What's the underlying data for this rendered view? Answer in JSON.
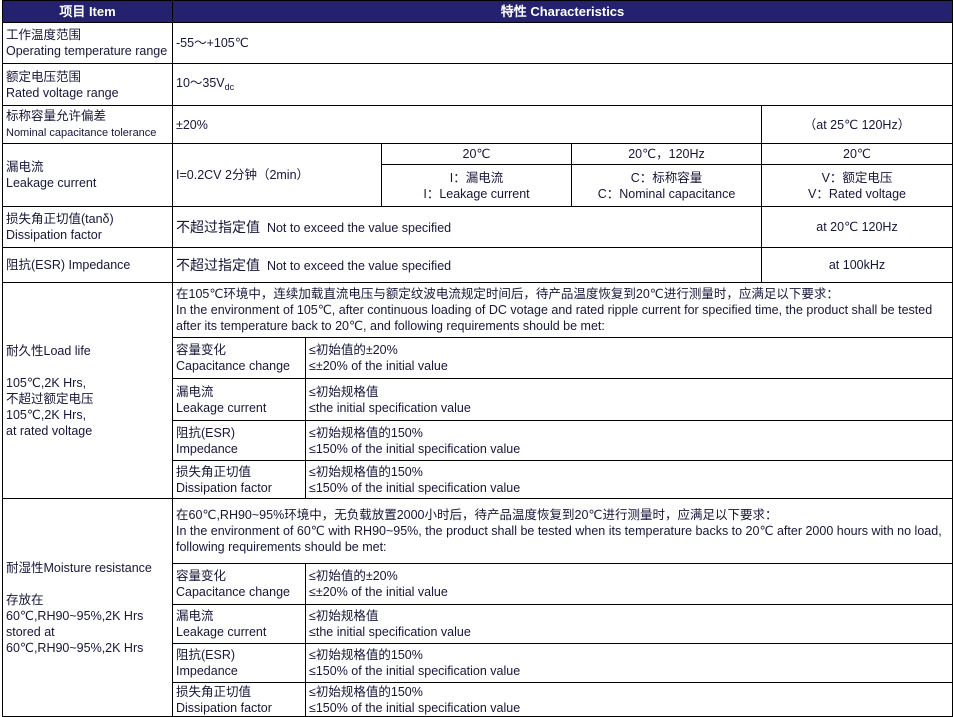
{
  "header": {
    "item": "项目 Item",
    "characteristics": "特性 Characteristics"
  },
  "rows": {
    "temp": {
      "label_zh": "工作温度范围",
      "label_en": "Operating temperature range",
      "value": "-55～+105℃"
    },
    "voltage": {
      "label_zh": "额定电压范围",
      "label_en": "Rated voltage range",
      "value": "10～35V",
      "value_sub": "dc"
    },
    "tolerance": {
      "label_zh": "标称容量允许偏差",
      "label_en": "Nominal capacitance tolerance",
      "value": "±20%",
      "condition": "（at  25℃ 120Hz）"
    },
    "leakage": {
      "label": "漏电流\nLeakage current",
      "value": "I=0.2CV   2分钟（2min）",
      "sub_headers": [
        "20℃",
        "20℃，120Hz",
        "20℃"
      ],
      "sub_values": [
        "I：漏电流\nI：Leakage current",
        "C：标称容量\nC：Nominal capacitance",
        "V：额定电压\nV：Rated voltage"
      ]
    },
    "dissipation": {
      "label": "损失角正切值(tanδ)\nDissipation factor",
      "value_zh": "不超过指定值",
      "value_en": "Not to exceed the value specified",
      "condition": "at  20℃ 120Hz"
    },
    "impedance": {
      "label": "阻抗(ESR)   Impedance",
      "value_zh": "不超过指定值",
      "value_en": "Not to exceed the value specified",
      "condition": "at 100kHz"
    },
    "load_life": {
      "label": "耐久性Load life\n\n105℃,2K Hrs,\n不超过额定电压\n105℃,2K Hrs,\nat rated voltage",
      "intro": "在105℃环境中，连续加载直流电压与额定纹波电流规定时间后，待产品温度恢复到20℃进行测量时，应满足以下要求：\nIn the environment of 105℃, after continuous loading of DC votage and rated ripple current for specified time, the product shall be tested after its temperature back to 20℃, and following requirements should be met:",
      "items": [
        {
          "name": "容量变化\nCapacitance change",
          "req": "≤初始值的±20%\n≤±20% of the initial value"
        },
        {
          "name": "漏电流\nLeakage current",
          "req": "≤初始规格值\n≤the initial specification value"
        },
        {
          "name": "阻抗(ESR)\n Impedance",
          "req": "≤初始规格值的150%\n≤150% of the initial specification value"
        },
        {
          "name": "损失角正切值\nDissipation factor",
          "req": "≤初始规格值的150%\n≤150% of the initial specification value"
        }
      ]
    },
    "moisture": {
      "label": "耐湿性Moisture resistance\n\n存放在\n60℃,RH90~95%,2K Hrs\nstored at\n60℃,RH90~95%,2K Hrs",
      "intro": "在60℃,RH90~95%环境中，无负载放置2000小时后，待产品温度恢复到20℃进行测量时，应满足以下要求：\nIn the environment of 60℃ with RH90~95%, the product shall be tested when its temperature backs to 20℃ after 2000 hours with no load, following requirements should be met:",
      "items": [
        {
          "name": "容量变化\nCapacitance change",
          "req": "≤初始值的±20%\n≤±20% of the initial value"
        },
        {
          "name": "漏电流\nLeakage current",
          "req": "≤初始规格值\n≤the initial specification value"
        },
        {
          "name": "阻抗(ESR)\n Impedance",
          "req": "≤初始规格值的150%\n≤150% of the initial specification value"
        },
        {
          "name": "损失角正切值\nDissipation factor",
          "req": "≤初始规格值的150%\n≤150% of the initial specification value"
        }
      ]
    }
  },
  "colors": {
    "header_bg": "#24216e",
    "header_text": "#ffffff",
    "text": "#16163a"
  }
}
